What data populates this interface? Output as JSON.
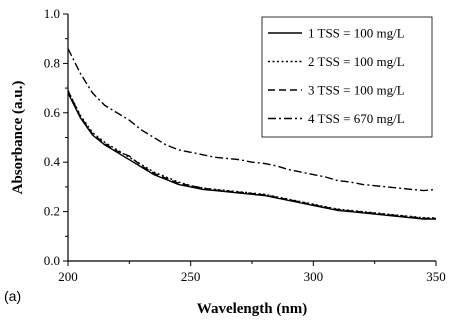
{
  "panel_label": "(a)",
  "chart_data": {
    "type": "line",
    "xlabel": "Wavelength (nm)",
    "ylabel": "Absorbance (a.u.)",
    "xlim": [
      200,
      350
    ],
    "ylim": [
      0.0,
      1.0
    ],
    "xticks": [
      200,
      250,
      300,
      350
    ],
    "yticks": [
      0.0,
      0.2,
      0.4,
      0.6,
      0.8,
      1.0
    ],
    "ytick_labels": [
      "0.0",
      "0.2",
      "0.4",
      "0.6",
      "0.8",
      "1.0"
    ],
    "grid": false,
    "legend_position": "top-right",
    "x": [
      200,
      205,
      210,
      215,
      220,
      225,
      230,
      235,
      240,
      245,
      250,
      255,
      260,
      265,
      270,
      275,
      280,
      285,
      290,
      295,
      300,
      305,
      310,
      315,
      320,
      325,
      330,
      335,
      340,
      345,
      350
    ],
    "series": [
      {
        "name": "1 TSS = 100 mg/L",
        "dash": "solid",
        "values": [
          0.68,
          0.58,
          0.51,
          0.47,
          0.44,
          0.41,
          0.38,
          0.35,
          0.33,
          0.31,
          0.3,
          0.29,
          0.285,
          0.28,
          0.275,
          0.27,
          0.265,
          0.255,
          0.245,
          0.235,
          0.225,
          0.215,
          0.205,
          0.2,
          0.195,
          0.19,
          0.185,
          0.18,
          0.175,
          0.17,
          0.17
        ]
      },
      {
        "name": "2 TSS = 100 mg/L",
        "dash": "dotted",
        "values": [
          0.69,
          0.59,
          0.52,
          0.48,
          0.45,
          0.42,
          0.39,
          0.36,
          0.34,
          0.32,
          0.305,
          0.295,
          0.29,
          0.285,
          0.28,
          0.275,
          0.27,
          0.26,
          0.25,
          0.24,
          0.23,
          0.22,
          0.21,
          0.205,
          0.2,
          0.195,
          0.19,
          0.185,
          0.18,
          0.175,
          0.175
        ]
      },
      {
        "name": "3 TSS = 100 mg/L",
        "dash": "dashed",
        "values": [
          0.69,
          0.585,
          0.515,
          0.475,
          0.445,
          0.425,
          0.385,
          0.355,
          0.335,
          0.315,
          0.305,
          0.295,
          0.288,
          0.283,
          0.278,
          0.273,
          0.268,
          0.258,
          0.248,
          0.238,
          0.228,
          0.218,
          0.208,
          0.203,
          0.198,
          0.193,
          0.188,
          0.183,
          0.178,
          0.173,
          0.172
        ]
      },
      {
        "name": "4 TSS = 670 mg/L",
        "dash": "dashdot",
        "values": [
          0.86,
          0.76,
          0.68,
          0.63,
          0.6,
          0.57,
          0.53,
          0.5,
          0.47,
          0.45,
          0.44,
          0.43,
          0.42,
          0.415,
          0.41,
          0.4,
          0.395,
          0.385,
          0.37,
          0.36,
          0.35,
          0.34,
          0.325,
          0.32,
          0.31,
          0.305,
          0.3,
          0.295,
          0.29,
          0.285,
          0.29
        ]
      }
    ]
  }
}
